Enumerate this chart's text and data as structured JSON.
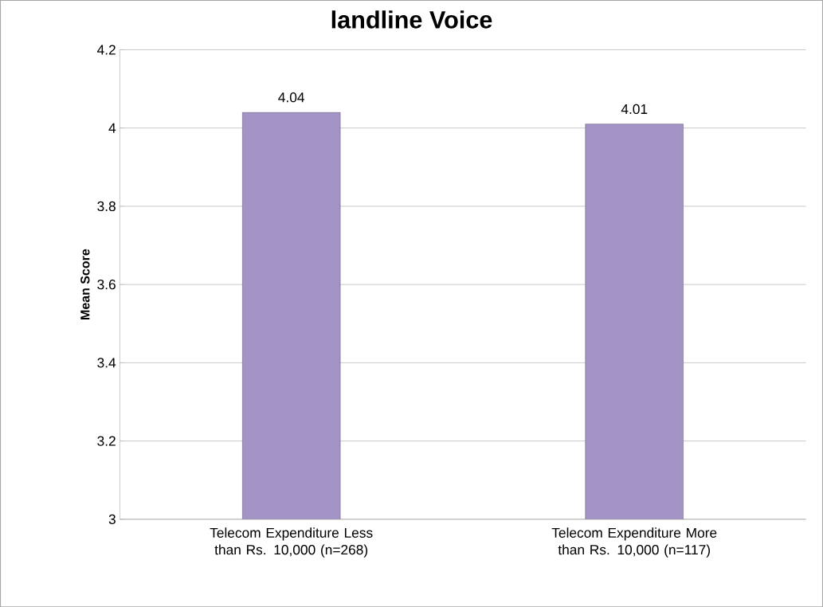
{
  "chart_data": {
    "type": "bar",
    "title": "landline Voice",
    "ylabel": "Mean Score",
    "categories": [
      "Telecom Expenditure Less than Rs. 10,000 (n=268)",
      "Telecom Expenditure More  than Rs. 10,000 (n=117)"
    ],
    "values": [
      4.04,
      4.01
    ],
    "color": "#a494c6",
    "ylim": [
      3,
      4.2
    ],
    "yticks": [
      3,
      3.2,
      3.4,
      3.6,
      3.8,
      4,
      4.2
    ],
    "grid": "y",
    "data_labels": true
  }
}
